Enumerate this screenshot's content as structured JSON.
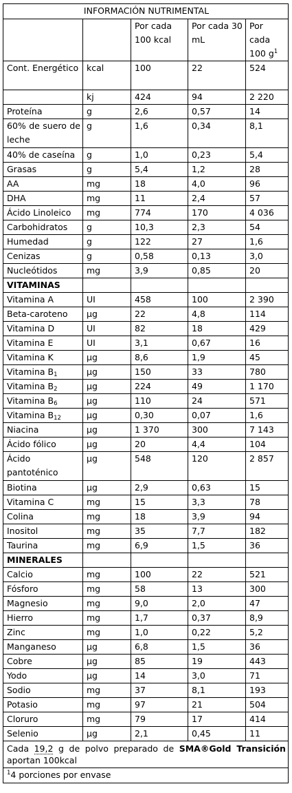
{
  "title": "INFORMACIÓN NUTRIMENTAL",
  "headers": {
    "col1": "",
    "col2": "",
    "col3": "Por cada 100 kcal",
    "col4": "Por cada 30 mL",
    "col5": "Por cada 100 g",
    "col5_sup": "1"
  },
  "rows": [
    {
      "name": "Cont. Energético",
      "unit": "kcal",
      "v100kcal": "100",
      "v30ml": "22",
      "v100g": "524"
    },
    {
      "name": "",
      "unit": "kj",
      "v100kcal": "424",
      "v30ml": "94",
      "v100g": "2 220"
    },
    {
      "name": "Proteína",
      "unit": "g",
      "v100kcal": "2,6",
      "v30ml": "0,57",
      "v100g": "14"
    },
    {
      "name": "60% de suero de leche",
      "unit": "g",
      "v100kcal": "1,6",
      "v30ml": "0,34",
      "v100g": "8,1"
    },
    {
      "name": "40% de caseína",
      "unit": "g",
      "v100kcal": "1,0",
      "v30ml": "0,23",
      "v100g": "5,4"
    },
    {
      "name": "Grasas",
      "unit": "g",
      "v100kcal": "5,4",
      "v30ml": "1,2",
      "v100g": "28"
    },
    {
      "name": "AA",
      "unit": "mg",
      "v100kcal": "18",
      "v30ml": "4,0",
      "v100g": "96"
    },
    {
      "name": "DHA",
      "unit": "mg",
      "v100kcal": "11",
      "v30ml": "2,4",
      "v100g": "57"
    },
    {
      "name": "Ácido Linoleico",
      "unit": "mg",
      "v100kcal": "774",
      "v30ml": "170",
      "v100g": "4 036"
    },
    {
      "name": "Carbohidratos",
      "unit": "g",
      "v100kcal": "10,3",
      "v30ml": "2,3",
      "v100g": "54"
    },
    {
      "name": "Humedad",
      "unit": "g",
      "v100kcal": "122",
      "v30ml": "27",
      "v100g": "1,6"
    },
    {
      "name": "Cenizas",
      "unit": "g",
      "v100kcal": "0,58",
      "v30ml": "0,13",
      "v100g": "3,0"
    },
    {
      "name": "Nucleótidos",
      "unit": "mg",
      "v100kcal": "3,9",
      "v30ml": "0,85",
      "v100g": "20"
    }
  ],
  "vitamins_heading": "VITAMINAS",
  "vitamins": [
    {
      "name": "Vitamina A",
      "sub": "",
      "unit": "UI",
      "v100kcal": "458",
      "v30ml": "100",
      "v100g": "2 390"
    },
    {
      "name": "Beta-caroteno",
      "sub": "",
      "unit": "μg",
      "v100kcal": "22",
      "v30ml": "4,8",
      "v100g": "114"
    },
    {
      "name": "Vitamina D",
      "sub": "",
      "unit": "UI",
      "v100kcal": "82",
      "v30ml": "18",
      "v100g": "429"
    },
    {
      "name": "Vitamina E",
      "sub": "",
      "unit": "UI",
      "v100kcal": "3,1",
      "v30ml": "0,67",
      "v100g": "16"
    },
    {
      "name": "Vitamina K",
      "sub": "",
      "unit": "μg",
      "v100kcal": "8,6",
      "v30ml": "1,9",
      "v100g": "45"
    },
    {
      "name": "Vitamina B",
      "sub": "1",
      "unit": "μg",
      "v100kcal": "150",
      "v30ml": "33",
      "v100g": "780"
    },
    {
      "name": "Vitamina B",
      "sub": "2",
      "unit": "μg",
      "v100kcal": "224",
      "v30ml": "49",
      "v100g": "1 170"
    },
    {
      "name": "Vitamina B",
      "sub": "6",
      "unit": "μg",
      "v100kcal": "110",
      "v30ml": "24",
      "v100g": "571"
    },
    {
      "name": "Vitamina B",
      "sub": "12",
      "unit": "μg",
      "v100kcal": "0,30",
      "v30ml": "0,07",
      "v100g": "1,6"
    },
    {
      "name": "Niacina",
      "sub": "",
      "unit": "μg",
      "v100kcal": "1 370",
      "v30ml": "300",
      "v100g": "7 143"
    },
    {
      "name": "Ácido fólico",
      "sub": "",
      "unit": "μg",
      "v100kcal": "20",
      "v30ml": "4,4",
      "v100g": "104"
    },
    {
      "name": "Ácido pantoténico",
      "sub": "",
      "unit": "μg",
      "v100kcal": "548",
      "v30ml": "120",
      "v100g": "2 857"
    },
    {
      "name": "Biotina",
      "sub": "",
      "unit": "μg",
      "v100kcal": "2,9",
      "v30ml": "0,63",
      "v100g": "15"
    },
    {
      "name": "Vitamina C",
      "sub": "",
      "unit": "mg",
      "v100kcal": "15",
      "v30ml": "3,3",
      "v100g": "78"
    },
    {
      "name": "Colina",
      "sub": "",
      "unit": "mg",
      "v100kcal": "18",
      "v30ml": "3,9",
      "v100g": "94"
    },
    {
      "name": "Inositol",
      "sub": "",
      "unit": "mg",
      "v100kcal": "35",
      "v30ml": "7,7",
      "v100g": "182"
    },
    {
      "name": "Taurina",
      "sub": "",
      "unit": "mg",
      "v100kcal": "6,9",
      "v30ml": "1,5",
      "v100g": "36"
    }
  ],
  "minerals_heading": "MINERALES",
  "minerals": [
    {
      "name": "Calcio",
      "unit": "mg",
      "v100kcal": "100",
      "v30ml": "22",
      "v100g": "521"
    },
    {
      "name": "Fósforo",
      "unit": "mg",
      "v100kcal": "58",
      "v30ml": "13",
      "v100g": "300"
    },
    {
      "name": "Magnesio",
      "unit": "mg",
      "v100kcal": "9,0",
      "v30ml": "2,0",
      "v100g": "47"
    },
    {
      "name": "Hierro",
      "unit": "mg",
      "v100kcal": "1,7",
      "v30ml": "0,37",
      "v100g": "8,9"
    },
    {
      "name": "Zinc",
      "unit": "mg",
      "v100kcal": "1,0",
      "v30ml": "0,22",
      "v100g": "5,2"
    },
    {
      "name": "Manganeso",
      "unit": "μg",
      "v100kcal": "6,8",
      "v30ml": "1,5",
      "v100g": "36"
    },
    {
      "name": "Cobre",
      "unit": "μg",
      "v100kcal": "85",
      "v30ml": "19",
      "v100g": "443"
    },
    {
      "name": "Yodo",
      "unit": "μg",
      "v100kcal": "14",
      "v30ml": "3,0",
      "v100g": "71"
    },
    {
      "name": "Sodio",
      "unit": "mg",
      "v100kcal": "37",
      "v30ml": "8,1",
      "v100g": "193"
    },
    {
      "name": "Potasio",
      "unit": "mg",
      "v100kcal": "97",
      "v30ml": "21",
      "v100g": "504"
    },
    {
      "name": "Cloruro",
      "unit": "mg",
      "v100kcal": "79",
      "v30ml": "17",
      "v100g": "414"
    },
    {
      "name": "Selenio",
      "unit": "μg",
      "v100kcal": "2,1",
      "v30ml": "0,45",
      "v100g": "11"
    }
  ],
  "footnote": {
    "prefix": "Cada",
    "amount": "19,2",
    "middle": "g de polvo preparado de",
    "brand": "SMA®Gold Transición",
    "suffix": "aportan 100kcal"
  },
  "footnote2": {
    "sup": "1",
    "text": "4 porciones por envase"
  }
}
